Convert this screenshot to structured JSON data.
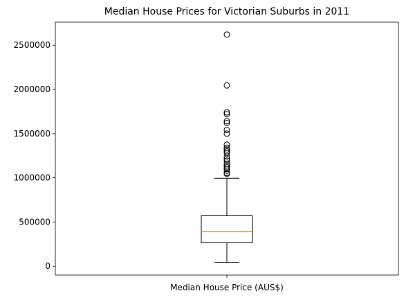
{
  "chart_data": {
    "type": "box",
    "title": "Median House Prices for Victorian Suburbs in 2011",
    "xlabel": "",
    "ylabel": "",
    "categories": [
      "Median House Price (AUS$)"
    ],
    "yticks": [
      0,
      500000,
      1000000,
      1500000,
      2000000,
      2500000
    ],
    "ylim": [
      -100000,
      2760000
    ],
    "grid": false,
    "legend": "none",
    "box": {
      "whisker_low": 45000,
      "q1": 265000,
      "median": 390000,
      "q3": 570000,
      "whisker_high": 995000
    },
    "outliers": [
      1045000,
      1055000,
      1080000,
      1100000,
      1120000,
      1140000,
      1160000,
      1195000,
      1215000,
      1240000,
      1280000,
      1300000,
      1320000,
      1340000,
      1375000,
      1500000,
      1540000,
      1620000,
      1640000,
      1720000,
      1740000,
      2045000,
      2620000
    ],
    "colors": {
      "box": "#000000",
      "median": "#ff7f0e",
      "outlier": "#000000",
      "background": "#ffffff"
    }
  }
}
